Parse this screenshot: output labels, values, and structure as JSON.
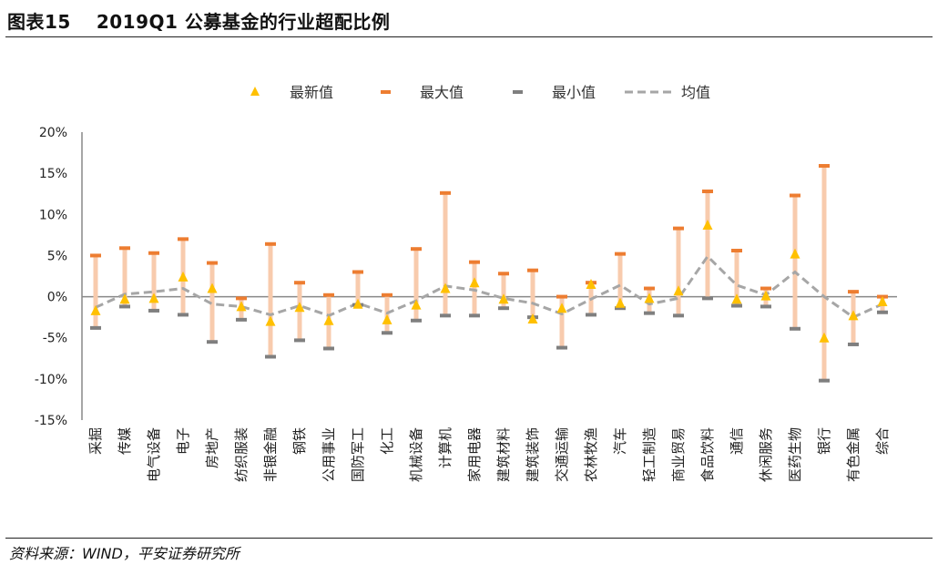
{
  "header": {
    "figure_no": "图表15",
    "title": "2019Q1 公募基金的行业超配比例"
  },
  "source": "资料来源：WIND，平安证券研究所",
  "colors": {
    "latest": "#FFC000",
    "max": "#ED7D31",
    "min": "#7F7F7F",
    "range": "#F8CBAD",
    "mean": "#A6A6A6"
  },
  "chart_data": {
    "type": "line",
    "title": "",
    "xlabel": "",
    "ylabel": "",
    "ylim": [
      -15,
      20
    ],
    "yticks": [
      "-15%",
      "-10%",
      "-5%",
      "0%",
      "5%",
      "10%",
      "15%",
      "20%"
    ],
    "ytick_values": [
      -15,
      -10,
      -5,
      0,
      5,
      10,
      15,
      20
    ],
    "grid": false,
    "legend": {
      "placement": "top",
      "entries": [
        "最新值",
        "最大值",
        "最小值",
        "均值"
      ]
    },
    "categories": [
      "采掘",
      "传媒",
      "电气设备",
      "电子",
      "房地产",
      "纺织服装",
      "非银金融",
      "钢铁",
      "公用事业",
      "国防军工",
      "化工",
      "机械设备",
      "计算机",
      "家用电器",
      "建筑材料",
      "建筑装饰",
      "交通运输",
      "农林牧渔",
      "汽车",
      "轻工制造",
      "商业贸易",
      "食品饮料",
      "通信",
      "休闲服务",
      "医药生物",
      "银行",
      "有色金属",
      "综合"
    ],
    "series": [
      {
        "name": "最新值",
        "marker": "triangle",
        "values": [
          -1.7,
          -0.3,
          -0.2,
          2.4,
          1.0,
          -1.2,
          -3.0,
          -1.3,
          -2.9,
          -0.9,
          -2.8,
          -1.0,
          1.0,
          1.7,
          -0.3,
          -2.7,
          -1.4,
          1.5,
          -0.8,
          -0.2,
          0.7,
          8.7,
          -0.3,
          0.1,
          5.2,
          -5.0,
          -2.3,
          -0.6
        ]
      },
      {
        "name": "最大值",
        "marker": "dash",
        "values": [
          5.0,
          5.9,
          5.3,
          7.0,
          4.1,
          -0.2,
          6.4,
          1.7,
          0.2,
          3.0,
          0.2,
          5.8,
          12.6,
          4.2,
          2.8,
          3.2,
          0.0,
          1.7,
          5.2,
          1.0,
          8.3,
          12.8,
          5.6,
          1.0,
          12.3,
          15.9,
          0.6,
          0.0
        ]
      },
      {
        "name": "最小值",
        "marker": "dash",
        "values": [
          -3.8,
          -1.2,
          -1.7,
          -2.2,
          -5.5,
          -2.8,
          -7.3,
          -5.3,
          -6.3,
          -1.0,
          -4.4,
          -2.9,
          -2.3,
          -2.3,
          -1.4,
          -2.5,
          -6.2,
          -2.2,
          -1.4,
          -2.0,
          -2.3,
          -0.2,
          -1.1,
          -1.2,
          -3.9,
          -10.2,
          -5.8,
          -1.9
        ]
      },
      {
        "name": "均值",
        "marker": "dashed-line",
        "values": [
          -1.3,
          0.3,
          0.6,
          1.0,
          -0.9,
          -1.2,
          -2.2,
          -1.1,
          -2.3,
          -0.8,
          -2.0,
          -0.5,
          1.3,
          0.8,
          -0.2,
          -0.8,
          -2.1,
          -0.3,
          1.4,
          -0.9,
          -0.2,
          4.9,
          1.4,
          0.2,
          3.0,
          0.0,
          -2.5,
          -0.9
        ]
      }
    ]
  }
}
